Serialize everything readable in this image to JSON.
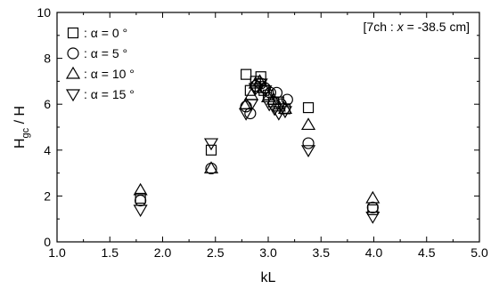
{
  "chart_data": {
    "type": "scatter",
    "xlabel": "kL",
    "ylabel": {
      "main": "H",
      "sub": "gc",
      "rest": " / H"
    },
    "xlim": [
      1.0,
      5.0
    ],
    "ylim": [
      0,
      10
    ],
    "xticks": [
      "1.0",
      "1.5",
      "2.0",
      "2.5",
      "3.0",
      "3.5",
      "4.0",
      "4.5",
      "5.0"
    ],
    "yticks": [
      "0",
      "2",
      "4",
      "6",
      "8",
      "10"
    ],
    "grid": false,
    "legend_position": "top-left",
    "annotation": {
      "pre": "[7ch : ",
      "var": "x",
      "post": " = -38.5 cm]"
    },
    "series": [
      {
        "name": ": α =  0 °",
        "marker": "square",
        "points": [
          [
            1.79,
            1.9
          ],
          [
            2.46,
            4.0
          ],
          [
            2.79,
            7.3
          ],
          [
            2.83,
            6.6
          ],
          [
            2.88,
            7.0
          ],
          [
            2.93,
            7.2
          ],
          [
            2.96,
            6.6
          ],
          [
            3.0,
            6.4
          ],
          [
            3.05,
            6.1
          ],
          [
            3.1,
            6.1
          ],
          [
            3.16,
            5.8
          ],
          [
            3.38,
            5.85
          ],
          [
            3.99,
            1.4
          ]
        ]
      },
      {
        "name": ": α =  5 °",
        "marker": "circle",
        "points": [
          [
            1.79,
            1.8
          ],
          [
            2.46,
            3.2
          ],
          [
            2.79,
            5.9
          ],
          [
            2.83,
            5.6
          ],
          [
            2.88,
            6.8
          ],
          [
            2.93,
            6.9
          ],
          [
            2.97,
            6.7
          ],
          [
            3.02,
            6.5
          ],
          [
            3.08,
            6.5
          ],
          [
            3.12,
            6.0
          ],
          [
            3.18,
            6.2
          ],
          [
            3.38,
            4.3
          ],
          [
            3.99,
            1.5
          ]
        ]
      },
      {
        "name": ": α = 10 °",
        "marker": "triangle-up",
        "points": [
          [
            1.79,
            2.25
          ],
          [
            2.46,
            3.2
          ],
          [
            2.79,
            6.0
          ],
          [
            2.84,
            6.4
          ],
          [
            2.88,
            6.9
          ],
          [
            2.92,
            7.0
          ],
          [
            2.96,
            6.7
          ],
          [
            3.0,
            6.3
          ],
          [
            3.05,
            6.2
          ],
          [
            3.1,
            5.9
          ],
          [
            3.16,
            5.8
          ],
          [
            3.38,
            5.1
          ],
          [
            3.99,
            1.9
          ]
        ]
      },
      {
        "name": ": α = 15 °",
        "marker": "triangle-down",
        "points": [
          [
            1.79,
            1.4
          ],
          [
            2.46,
            4.3
          ],
          [
            2.79,
            5.6
          ],
          [
            2.84,
            6.0
          ],
          [
            2.88,
            6.7
          ],
          [
            2.93,
            6.9
          ],
          [
            2.97,
            6.6
          ],
          [
            3.01,
            6.0
          ],
          [
            3.06,
            5.8
          ],
          [
            3.1,
            5.6
          ],
          [
            3.16,
            5.7
          ],
          [
            3.38,
            4.0
          ],
          [
            3.99,
            1.1
          ]
        ]
      }
    ]
  }
}
